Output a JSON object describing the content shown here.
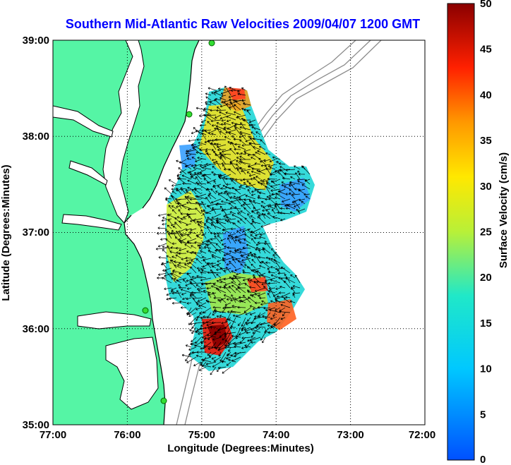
{
  "title": "Southern Mid-Atlantic Raw Velocities 2009/04/07 1200 GMT",
  "x_axis": {
    "label": "Longitude (Degrees:Minutes)",
    "ticks": [
      "77:00",
      "76:00",
      "75:00",
      "74:00",
      "73:00",
      "72:00"
    ]
  },
  "y_axis": {
    "label": "Latitude (Degrees:Minutes)",
    "ticks": [
      "39:00",
      "38:00",
      "37:00",
      "36:00",
      "35:00"
    ]
  },
  "colorbar": {
    "label": "Surface Velocity (cm/s)",
    "ticks": [
      "50",
      "45",
      "40",
      "35",
      "30",
      "25",
      "20",
      "15",
      "10",
      "5",
      "0"
    ],
    "range": [
      0,
      50
    ]
  },
  "colors": {
    "title": "#0000ff",
    "land": "#55f5a5",
    "bathymetry": "#8c8c8c",
    "grid": "#000000",
    "stations": "#33dd33"
  },
  "chart_data": {
    "type": "heatmap",
    "title": "Southern Mid-Atlantic Raw Velocities 2009/04/07 1200 GMT",
    "xlabel": "Longitude (Degrees:Minutes)",
    "ylabel": "Latitude (Degrees:Minutes)",
    "xlim": [
      -77,
      -72
    ],
    "ylim": [
      35,
      39
    ],
    "clim": [
      0,
      50
    ],
    "grid": "dotted",
    "colorbar_label": "Surface Velocity (cm/s)"
  }
}
